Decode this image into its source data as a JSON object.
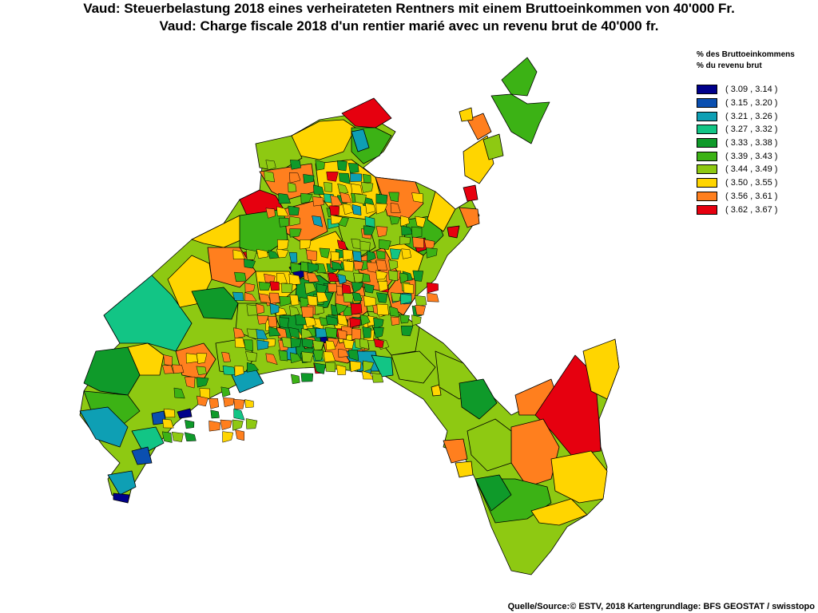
{
  "title": {
    "line1": "Vaud: Steuerbelastung 2018 eines verheirateten Rentners mit einem Bruttoeinkommen von 40'000 Fr.",
    "line2": "Vaud: Charge fiscale 2018 d'un rentier marié avec un revenu brut de 40'000 fr."
  },
  "legend": {
    "heading_de": "% des Bruttoeinkommens",
    "heading_fr": "% du revenu brut",
    "classes": [
      {
        "label": "( 3.09 , 3.14 )",
        "color": "#00008b"
      },
      {
        "label": "( 3.15 , 3.20 )",
        "color": "#0a4fb0"
      },
      {
        "label": "( 3.21 , 3.26 )",
        "color": "#0e9fb4"
      },
      {
        "label": "( 3.27 , 3.32 )",
        "color": "#12c585"
      },
      {
        "label": "( 3.33 , 3.38 )",
        "color": "#0f9a2a"
      },
      {
        "label": "( 3.39 , 3.43 )",
        "color": "#3cb215"
      },
      {
        "label": "( 3.44 , 3.49 )",
        "color": "#8ec912"
      },
      {
        "label": "( 3.50 , 3.55 )",
        "color": "#ffd500"
      },
      {
        "label": "( 3.56 , 3.61 )",
        "color": "#ff7f1e"
      },
      {
        "label": "( 3.62 , 3.67 )",
        "color": "#e6000f"
      }
    ]
  },
  "source": "Quelle/Source:© ESTV, 2018 Kartengrundlage: BFS GEOSTAT / swisstopo"
}
